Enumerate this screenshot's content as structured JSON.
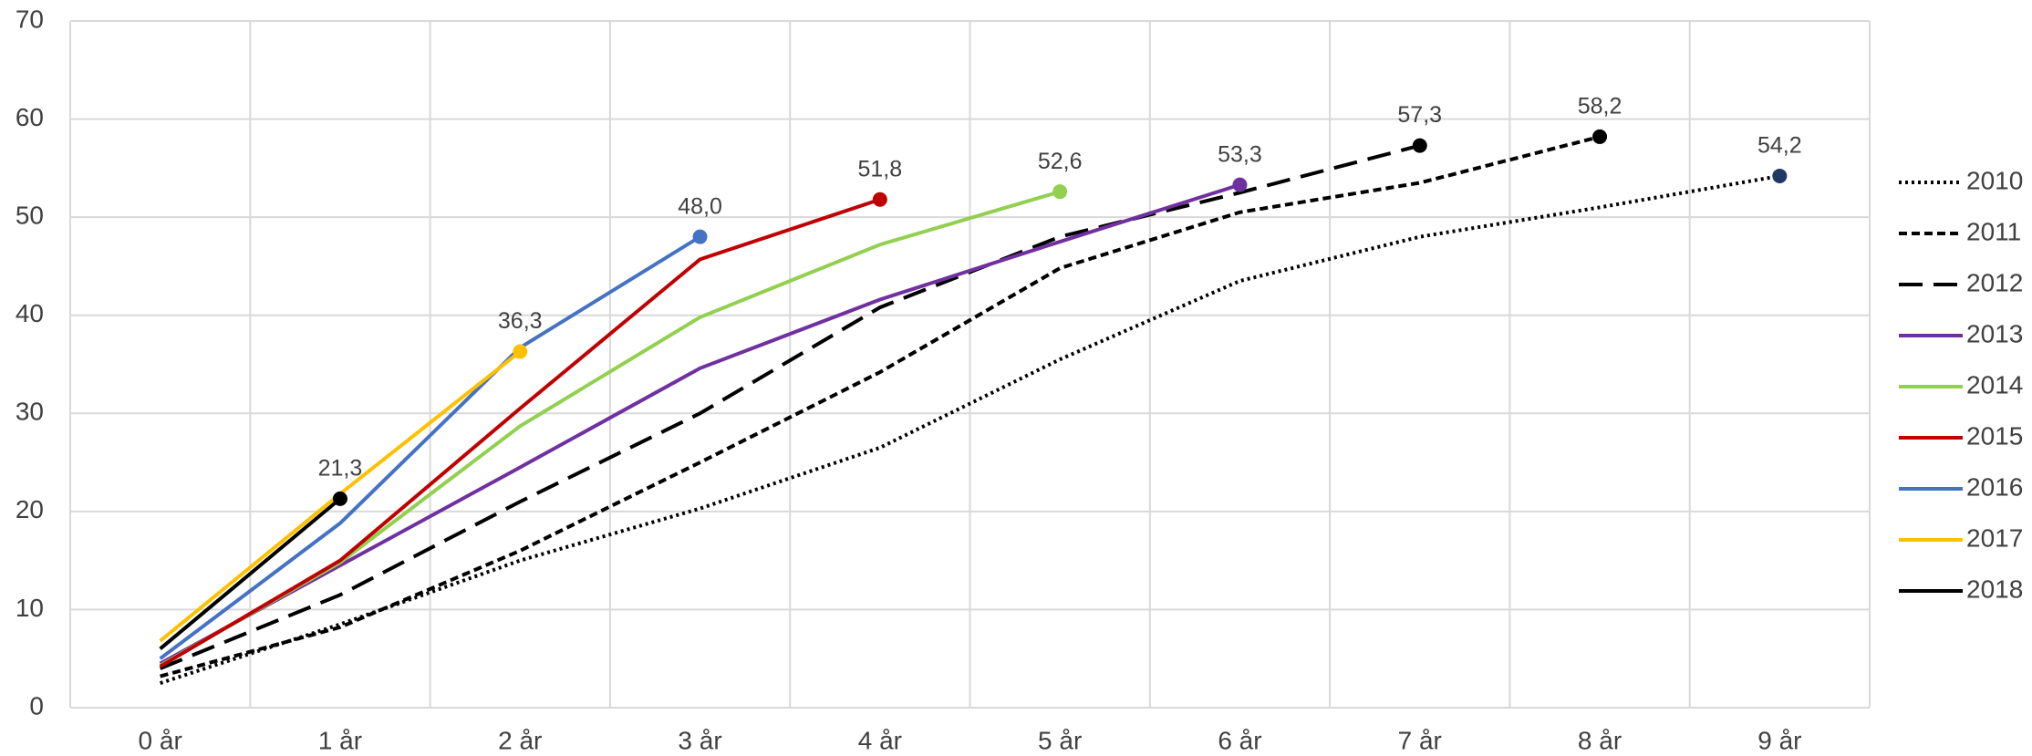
{
  "chart_data": {
    "type": "line",
    "categories": [
      "0 år",
      "1 år",
      "2 år",
      "3 år",
      "4 år",
      "5 år",
      "6 år",
      "7 år",
      "8 år",
      "9 år"
    ],
    "ylim": [
      0,
      70
    ],
    "yticks": [
      0,
      10,
      20,
      30,
      40,
      50,
      60,
      70
    ],
    "grid": true,
    "legend": "right",
    "series": [
      {
        "name": "2010",
        "color": "#000000",
        "marker_color": "#1f3864",
        "dash": "dotted",
        "values": [
          2.5,
          8.5,
          15,
          20.3,
          26.5,
          35.5,
          43.5,
          48,
          51,
          54.2
        ],
        "value_labels": [
          null,
          null,
          null,
          null,
          null,
          null,
          null,
          null,
          null,
          "54,2"
        ]
      },
      {
        "name": "2011",
        "color": "#000000",
        "marker_color": "#000000",
        "dash": "dashed",
        "values": [
          3.2,
          8.2,
          16,
          25,
          34.2,
          44.8,
          50.5,
          53.5,
          58.2,
          null
        ],
        "value_labels": [
          null,
          null,
          null,
          null,
          null,
          null,
          null,
          null,
          "58,2",
          null
        ]
      },
      {
        "name": "2012",
        "color": "#000000",
        "marker_color": "#000000",
        "dash": "longdash",
        "values": [
          4,
          11.5,
          21,
          30,
          40.8,
          48,
          52.5,
          57.3,
          null,
          null
        ],
        "value_labels": [
          null,
          null,
          null,
          null,
          null,
          null,
          null,
          "57,3",
          null,
          null
        ]
      },
      {
        "name": "2013",
        "color": "#7030a0",
        "marker_color": "#7030a0",
        "dash": "solid",
        "values": [
          4.5,
          14.5,
          24.5,
          34.6,
          41.6,
          47.5,
          53.3,
          null,
          null,
          null
        ],
        "value_labels": [
          null,
          null,
          null,
          null,
          null,
          null,
          "53,3",
          null,
          null,
          null
        ]
      },
      {
        "name": "2014",
        "color": "#92d050",
        "marker_color": "#92d050",
        "dash": "solid",
        "values": [
          4.3,
          14.8,
          28.7,
          39.8,
          47.2,
          52.6,
          null,
          null,
          null,
          null
        ],
        "value_labels": [
          null,
          null,
          null,
          null,
          null,
          "52,6",
          null,
          null,
          null,
          null
        ]
      },
      {
        "name": "2015",
        "color": "#c00000",
        "marker_color": "#c00000",
        "dash": "solid",
        "values": [
          4.2,
          15,
          30.5,
          45.7,
          51.8,
          null,
          null,
          null,
          null,
          null
        ],
        "value_labels": [
          null,
          null,
          null,
          null,
          "51,8",
          null,
          null,
          null,
          null,
          null
        ]
      },
      {
        "name": "2016",
        "color": "#4472c4",
        "marker_color": "#4472c4",
        "dash": "solid",
        "values": [
          5,
          18.8,
          36.7,
          48.0,
          null,
          null,
          null,
          null,
          null,
          null
        ],
        "value_labels": [
          null,
          null,
          null,
          "48,0",
          null,
          null,
          null,
          null,
          null,
          null
        ]
      },
      {
        "name": "2017",
        "color": "#ffc000",
        "marker_color": "#ffc000",
        "dash": "solid",
        "values": [
          6.8,
          21.8,
          36.3,
          null,
          null,
          null,
          null,
          null,
          null,
          null
        ],
        "value_labels": [
          null,
          null,
          "36,3",
          null,
          null,
          null,
          null,
          null,
          null,
          null
        ]
      },
      {
        "name": "2018",
        "color": "#000000",
        "marker_color": "#000000",
        "dash": "solid",
        "values": [
          6,
          21.3,
          null,
          null,
          null,
          null,
          null,
          null,
          null,
          null
        ],
        "value_labels": [
          null,
          "21,3",
          null,
          null,
          null,
          null,
          null,
          null,
          null,
          null
        ]
      }
    ]
  }
}
